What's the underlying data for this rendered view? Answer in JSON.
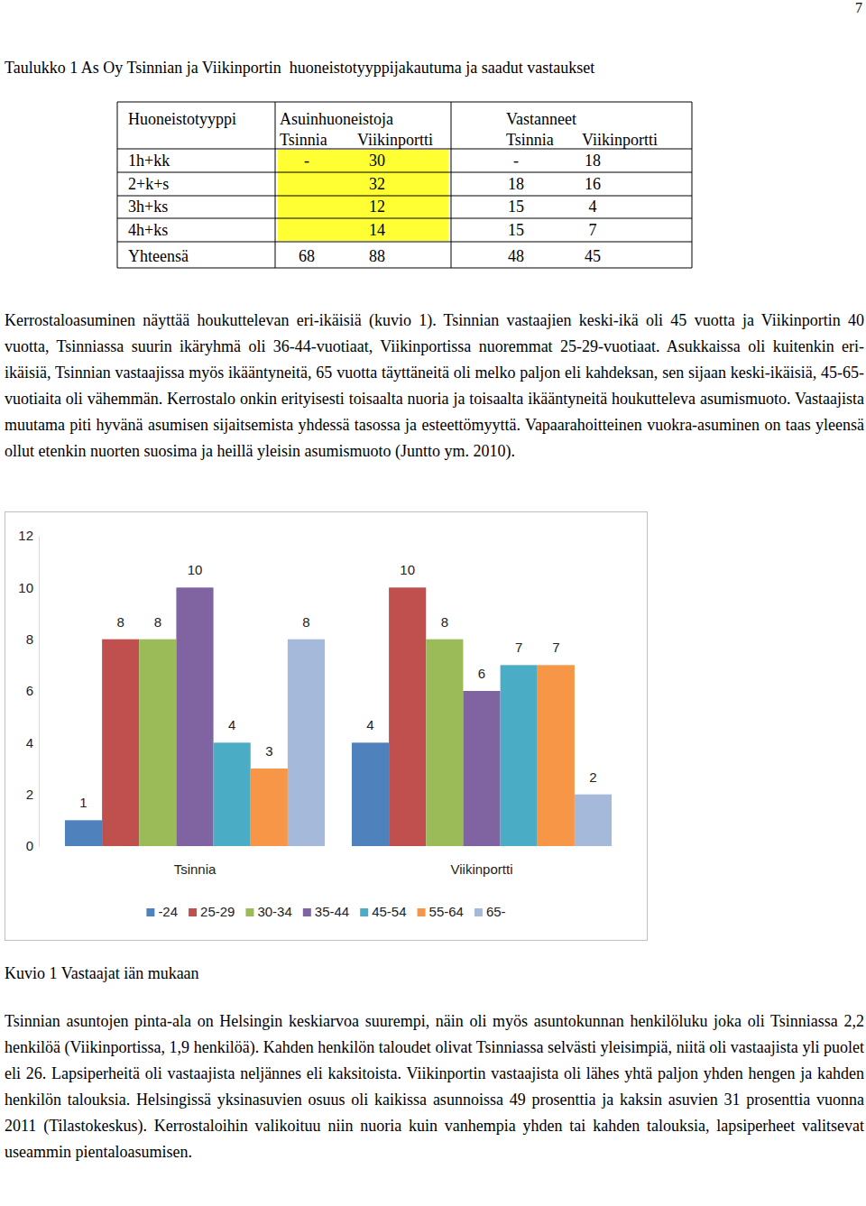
{
  "page_number": "7",
  "table": {
    "caption": "Taulukko 1 As Oy Tsinnian ja Viikinportin  huoneistotyyppijakautuma ja saadut vastaukset",
    "header": {
      "groups": [
        "Huoneistotyyppi",
        "Asuinhuoneistoja",
        "Vastanneet"
      ],
      "subheaders": [
        "Tsinnia",
        "Viikinportti",
        "Tsinnia",
        "Viikinportti"
      ]
    },
    "rows": [
      [
        "1h+kk",
        "-",
        "30",
        "-",
        "18"
      ],
      [
        "2+k+s",
        null,
        "32",
        "18",
        "16"
      ],
      [
        "3h+ks",
        null,
        "12",
        "15",
        "4"
      ],
      [
        "4h+ks",
        null,
        "14",
        "15",
        "7"
      ],
      [
        "Yhteensä",
        "68",
        "88",
        "48",
        "45"
      ]
    ]
  },
  "paragraphs": [
    "Kerrostaloasuminen näyttää houkuttelevan eri-ikäisiä (kuvio 1). Tsinnian vastaajien keski-ikä oli 45 vuotta ja Viikinportin 40 vuotta, Tsinniassa suurin ikäryhmä oli 36-44-vuotiaat, Viikinportissa nuoremmat 25-29-vuotiaat. Asukkaissa oli kuitenkin eri-ikäisiä, Tsinnian vastaajissa myös ikääntyneitä, 65 vuotta täyttäneitä oli melko paljon eli kahdeksan, sen sijaan keski-ikäisiä, 45-65-vuotiaita oli vähemmän. Kerrostalo onkin erityisesti toisaalta nuoria ja toisaalta ikääntyneitä houkutteleva asumismuoto. Vastaajista muutama piti hyvänä asumisen sijaitsemista yhdessä tasossa ja esteettömyyttä. Vapaarahoitteinen vuokra-asuminen on taas yleensä ollut etenkin nuorten suosima ja heillä yleisin asumismuoto (Juntto ym. 2010).",
    "Tsinnian asuntojen pinta-ala on Helsingin keskiarvoa suurempi, näin oli myös asuntokunnan henkilöluku joka oli Tsinniassa 2,2 henkilöä (Viikinportissa, 1,9 henkilöä). Kahden henkilön taloudet olivat Tsinniassa selvästi yleisimpiä, niitä oli vastaajista yli puolet eli 26. Lapsiperheitä oli vastaajista neljännes eli kaksitoista. Viikinportin vastaajista oli lähes yhtä paljon yhden hengen ja kahden henkilön talouksia. Helsingissä yksinasuvien osuus oli kaikissa asunnoissa 49 prosenttia ja kaksin asuvien 31 prosenttia vuonna 2011 (Tilastokeskus). Kerrostaloihin valikoituu niin nuoria kuin vanhempia yhden tai kahden talouksia, lapsiperheet valitsevat useammin pientaloasumisen."
  ],
  "chart_data": {
    "type": "bar",
    "categories": [
      "Tsinnia",
      "Viikinportti"
    ],
    "series": [
      {
        "name": "-24",
        "color": "#4f81bd",
        "values": [
          1,
          4
        ]
      },
      {
        "name": "25-29",
        "color": "#c0504d",
        "values": [
          8,
          10
        ]
      },
      {
        "name": "30-34",
        "color": "#9bbb59",
        "values": [
          8,
          8
        ]
      },
      {
        "name": "35-44",
        "color": "#8064a2",
        "values": [
          10,
          6
        ]
      },
      {
        "name": "45-54",
        "color": "#4bacc6",
        "values": [
          4,
          7
        ]
      },
      {
        "name": "55-64",
        "color": "#f79646",
        "values": [
          3,
          7
        ]
      },
      {
        "name": "65-",
        "color": "#a5b9db",
        "values": [
          8,
          2
        ]
      }
    ],
    "ylim": [
      0,
      12
    ],
    "yticks": [
      0,
      2,
      4,
      6,
      8,
      10,
      12
    ],
    "grid": false,
    "legend": "bottom",
    "data_labels": true
  },
  "figure_caption": "Kuvio 1 Vastaajat iän mukaan"
}
